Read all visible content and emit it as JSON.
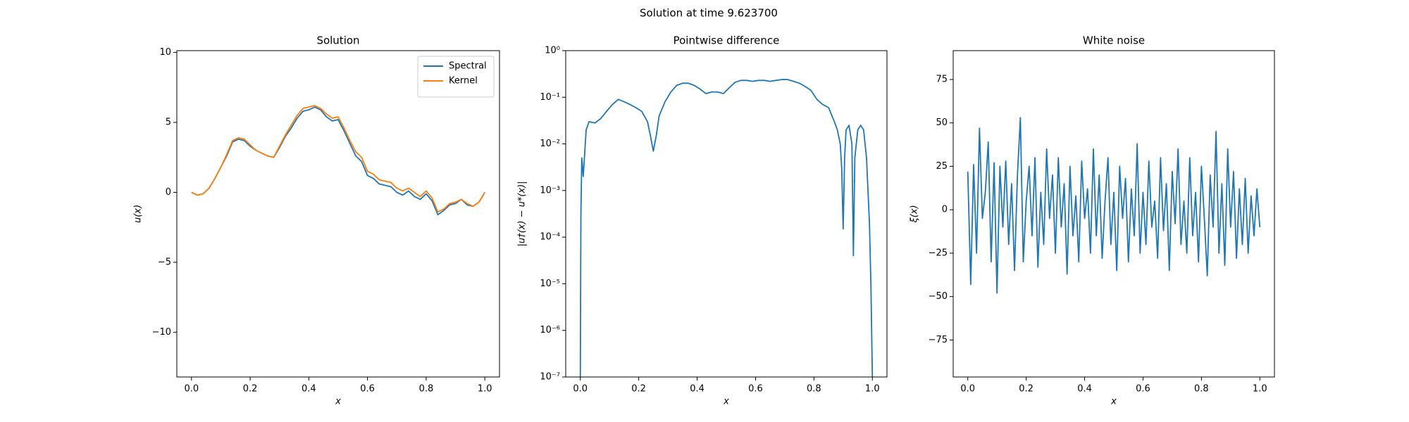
{
  "title": "Solution at time 9.623700",
  "chart_data": [
    {
      "type": "line",
      "title": "Solution",
      "xlabel": "x",
      "ylabel": "u(x)",
      "xlim": [
        -0.05,
        1.05
      ],
      "ylim": [
        -13.2,
        10.13
      ],
      "yscale": "linear",
      "xticks": [
        {
          "value": 0,
          "label": "0.0"
        },
        0.2,
        0.4,
        0.6,
        0.8,
        {
          "value": 1,
          "label": "1.0"
        }
      ],
      "yticks": [
        {
          "value": -10,
          "label": "−10"
        },
        {
          "value": -5,
          "label": "−5"
        },
        0,
        5,
        10
      ],
      "legend": "upper right",
      "x": [
        0,
        0.02,
        0.04,
        0.06,
        0.08,
        0.1,
        0.12,
        0.14,
        0.16,
        0.18,
        0.2,
        0.22,
        0.24,
        0.26,
        0.28,
        0.3,
        0.32,
        0.34,
        0.36,
        0.38,
        0.4,
        0.42,
        0.44,
        0.46,
        0.48,
        0.5,
        0.52,
        0.54,
        0.56,
        0.58,
        0.6,
        0.62,
        0.64,
        0.66,
        0.68,
        0.7,
        0.72,
        0.74,
        0.76,
        0.78,
        0.8,
        0.82,
        0.84,
        0.86,
        0.88,
        0.9,
        0.92,
        0.94,
        0.96,
        0.98,
        1
      ],
      "series": [
        {
          "name": "Spectral",
          "color": "#1f77b4",
          "values": [
            0,
            -0.2,
            -0.1,
            0.3,
            1.0,
            1.8,
            2.6,
            3.6,
            3.8,
            3.7,
            3.3,
            3.0,
            2.8,
            2.6,
            2.5,
            3.2,
            4.0,
            4.6,
            5.3,
            5.8,
            5.9,
            6.1,
            5.9,
            5.4,
            5.1,
            5.2,
            4.4,
            3.5,
            2.6,
            2.2,
            1.2,
            1.0,
            0.6,
            0.5,
            0.4,
            0.0,
            -0.2,
            0.1,
            -0.3,
            -0.5,
            -0.1,
            -0.6,
            -1.6,
            -1.3,
            -0.9,
            -0.8,
            -0.5,
            -0.9,
            -1.0,
            -0.7,
            0.0
          ]
        },
        {
          "name": "Kernel",
          "color": "#ff7f0e",
          "values": [
            0,
            -0.2,
            -0.1,
            0.3,
            1.0,
            1.8,
            2.7,
            3.7,
            3.9,
            3.8,
            3.4,
            3.0,
            2.8,
            2.6,
            2.5,
            3.3,
            4.1,
            4.8,
            5.5,
            6.0,
            6.1,
            6.2,
            6.0,
            5.6,
            5.3,
            5.4,
            4.6,
            3.7,
            2.9,
            2.5,
            1.5,
            1.3,
            0.9,
            0.8,
            0.7,
            0.3,
            0.1,
            0.3,
            0.0,
            -0.3,
            0.1,
            -0.4,
            -1.4,
            -1.2,
            -0.8,
            -0.7,
            -0.5,
            -0.8,
            -1.0,
            -0.7,
            0.0
          ]
        }
      ]
    },
    {
      "type": "line",
      "title": "Pointwise difference",
      "xlabel": "x",
      "ylabel": "|u†(x) − u*(x)|",
      "xlim": [
        -0.05,
        1.05
      ],
      "ylim": [
        1e-07,
        1
      ],
      "yscale": "log",
      "xticks": [
        {
          "value": 0,
          "label": "0.0"
        },
        0.2,
        0.4,
        0.6,
        0.8,
        {
          "value": 1,
          "label": "1.0"
        }
      ],
      "yticks": [
        {
          "value": 1e-07,
          "label": "10⁻⁷"
        },
        {
          "value": 1e-06,
          "label": "10⁻⁶"
        },
        {
          "value": 1e-05,
          "label": "10⁻⁵"
        },
        {
          "value": 0.0001,
          "label": "10⁻⁴"
        },
        {
          "value": 0.001,
          "label": "10⁻³"
        },
        {
          "value": 0.01,
          "label": "10⁻²"
        },
        {
          "value": 0.1,
          "label": "10⁻¹"
        },
        {
          "value": 1,
          "label": "10⁰"
        }
      ],
      "x": [
        0,
        0.002,
        0.005,
        0.01,
        0.02,
        0.03,
        0.05,
        0.07,
        0.09,
        0.11,
        0.13,
        0.15,
        0.17,
        0.19,
        0.21,
        0.23,
        0.24,
        0.25,
        0.26,
        0.27,
        0.29,
        0.31,
        0.33,
        0.35,
        0.37,
        0.39,
        0.41,
        0.43,
        0.45,
        0.47,
        0.49,
        0.51,
        0.53,
        0.55,
        0.57,
        0.59,
        0.61,
        0.63,
        0.65,
        0.67,
        0.69,
        0.71,
        0.73,
        0.75,
        0.77,
        0.79,
        0.81,
        0.83,
        0.85,
        0.87,
        0.88,
        0.89,
        0.895,
        0.9,
        0.905,
        0.91,
        0.92,
        0.93,
        0.935,
        0.94,
        0.95,
        0.96,
        0.97,
        0.98,
        0.99,
        0.995,
        1.0
      ],
      "series": [
        {
          "color": "#1f77b4",
          "values": [
            1e-07,
            0.0003,
            0.005,
            0.002,
            0.02,
            0.03,
            0.028,
            0.035,
            0.05,
            0.07,
            0.09,
            0.08,
            0.07,
            0.06,
            0.05,
            0.03,
            0.015,
            0.007,
            0.015,
            0.04,
            0.08,
            0.13,
            0.18,
            0.2,
            0.2,
            0.18,
            0.15,
            0.12,
            0.13,
            0.13,
            0.12,
            0.16,
            0.21,
            0.23,
            0.23,
            0.22,
            0.23,
            0.23,
            0.22,
            0.23,
            0.24,
            0.24,
            0.22,
            0.2,
            0.17,
            0.14,
            0.09,
            0.07,
            0.06,
            0.03,
            0.02,
            0.01,
            0.003,
            0.00015,
            0.005,
            0.02,
            0.025,
            0.01,
            4e-05,
            0.005,
            0.02,
            0.025,
            0.02,
            0.005,
            0.0002,
            1e-05,
            1e-07
          ]
        }
      ]
    },
    {
      "type": "line",
      "title": "White noise",
      "xlabel": "x",
      "ylabel": "ξ(x)",
      "xlim": [
        -0.05,
        1.05
      ],
      "ylim": [
        -96.3,
        91.6
      ],
      "yscale": "linear",
      "xticks": [
        {
          "value": 0,
          "label": "0.0"
        },
        0.2,
        0.4,
        0.6,
        0.8,
        {
          "value": 1,
          "label": "1.0"
        }
      ],
      "yticks": [
        {
          "value": -75,
          "label": "−75"
        },
        {
          "value": -50,
          "label": "−50"
        },
        {
          "value": -25,
          "label": "−25"
        },
        0,
        25,
        50,
        75
      ],
      "x": [
        0,
        0.01,
        0.02,
        0.03,
        0.04,
        0.05,
        0.06,
        0.07,
        0.08,
        0.09,
        0.1,
        0.11,
        0.12,
        0.13,
        0.14,
        0.15,
        0.16,
        0.17,
        0.18,
        0.19,
        0.2,
        0.21,
        0.22,
        0.23,
        0.24,
        0.25,
        0.26,
        0.27,
        0.28,
        0.29,
        0.3,
        0.31,
        0.32,
        0.33,
        0.34,
        0.35,
        0.36,
        0.37,
        0.38,
        0.39,
        0.4,
        0.41,
        0.42,
        0.43,
        0.44,
        0.45,
        0.46,
        0.47,
        0.48,
        0.49,
        0.5,
        0.51,
        0.52,
        0.53,
        0.54,
        0.55,
        0.56,
        0.57,
        0.58,
        0.59,
        0.6,
        0.61,
        0.62,
        0.63,
        0.64,
        0.65,
        0.66,
        0.67,
        0.68,
        0.69,
        0.7,
        0.71,
        0.72,
        0.73,
        0.74,
        0.75,
        0.76,
        0.77,
        0.78,
        0.79,
        0.8,
        0.81,
        0.82,
        0.83,
        0.84,
        0.85,
        0.86,
        0.87,
        0.88,
        0.89,
        0.9,
        0.91,
        0.92,
        0.93,
        0.94,
        0.95,
        0.96,
        0.97,
        0.98,
        0.99,
        1
      ],
      "series": [
        {
          "color": "#1f77b4",
          "values": [
            22,
            -43,
            26,
            -25,
            47,
            -5,
            10,
            39,
            -30,
            27,
            -48,
            25,
            -10,
            28,
            -20,
            15,
            -35,
            20,
            53,
            -30,
            5,
            25,
            -15,
            30,
            -33,
            10,
            -20,
            35,
            -5,
            20,
            -25,
            30,
            -10,
            15,
            -37,
            25,
            -15,
            8,
            -30,
            28,
            -5,
            12,
            -25,
            35,
            -15,
            20,
            -28,
            5,
            30,
            -20,
            10,
            -35,
            25,
            -5,
            18,
            -30,
            12,
            -15,
            38,
            -25,
            10,
            -20,
            28,
            -10,
            5,
            -28,
            30,
            -12,
            15,
            -35,
            22,
            -8,
            35,
            -20,
            5,
            -25,
            30,
            -15,
            10,
            -30,
            25,
            -5,
            -38,
            20,
            -10,
            45,
            -25,
            15,
            -32,
            35,
            -10,
            22,
            -28,
            12,
            -20,
            18,
            -25,
            8,
            -15,
            12,
            -10
          ]
        }
      ]
    }
  ]
}
